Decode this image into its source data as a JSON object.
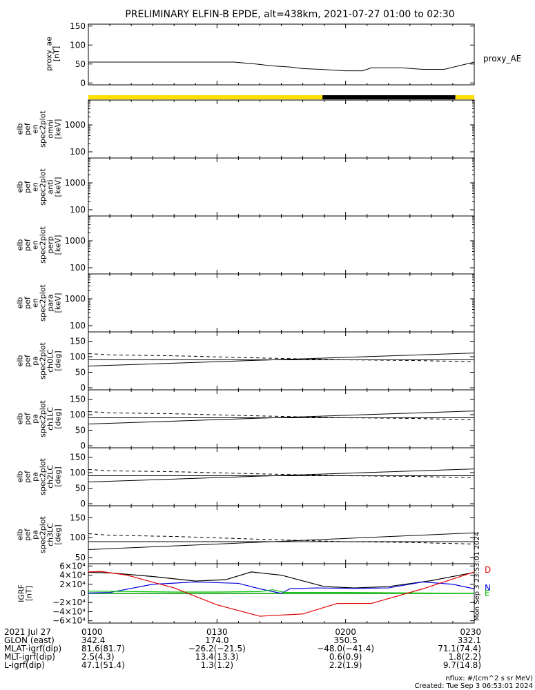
{
  "title": "PRELIMINARY ELFIN-B EPDE, alt=438km, 2021-07-27 01:00 to 02:30",
  "side_label_ae": "proxy_AE",
  "bfield_component_labels": [
    "D",
    "N",
    "E"
  ],
  "panels": [
    {
      "id": "ae",
      "ylabel_lines": [
        "proxy_ae",
        "[nT]"
      ],
      "ticks": [
        "150",
        "100",
        "50",
        "0"
      ]
    },
    {
      "id": "omni",
      "ylabel_lines": [
        "elb",
        "pef",
        "en",
        "spec2plot",
        "omni",
        "[keV]"
      ],
      "ticks": [
        "1000",
        "100"
      ]
    },
    {
      "id": "anti",
      "ylabel_lines": [
        "elb",
        "pef",
        "en",
        "spec2plot",
        "anti",
        "[keV]"
      ],
      "ticks": [
        "1000",
        "100"
      ]
    },
    {
      "id": "perp",
      "ylabel_lines": [
        "elb",
        "pef",
        "en",
        "spec2plot",
        "perp",
        "[keV]"
      ],
      "ticks": [
        "1000",
        "100"
      ]
    },
    {
      "id": "para",
      "ylabel_lines": [
        "elb",
        "pef",
        "en",
        "spec2plot",
        "para",
        "[keV]"
      ],
      "ticks": [
        "1000",
        "100"
      ]
    },
    {
      "id": "ch0",
      "ylabel_lines": [
        "elb",
        "pef",
        "pa",
        "spec2plot",
        "ch0LC",
        "[deg]"
      ],
      "ticks": [
        "150",
        "100",
        "50",
        "0"
      ]
    },
    {
      "id": "ch1",
      "ylabel_lines": [
        "elb",
        "pef",
        "pa",
        "spec2plot",
        "ch1LC",
        "[deg]"
      ],
      "ticks": [
        "150",
        "100",
        "50",
        "0"
      ]
    },
    {
      "id": "ch2",
      "ylabel_lines": [
        "elb",
        "pef",
        "pa",
        "spec2plot",
        "ch2LC",
        "[deg]"
      ],
      "ticks": [
        "150",
        "100",
        "50",
        "0"
      ]
    },
    {
      "id": "ch3",
      "ylabel_lines": [
        "elb",
        "pef",
        "pa",
        "spec2plot",
        "ch3LC",
        "[deg]"
      ],
      "ticks": [
        "150",
        "100",
        "50"
      ]
    },
    {
      "id": "igrf",
      "ylabel_lines": [
        "IGRF",
        "[nT]"
      ],
      "ticks": [
        "6×10⁴",
        "4×10⁴",
        "2×10⁴",
        "0",
        "−2×10⁴",
        "−4×10⁴",
        "−6×10⁴"
      ]
    }
  ],
  "footer": {
    "rows": [
      {
        "label": "2021 Jul 27",
        "values": [
          "0100",
          "0130",
          "0200",
          "0230"
        ]
      },
      {
        "label": "GLON (east)",
        "values": [
          "342.4",
          "174.0",
          "350.5",
          "332.1"
        ]
      },
      {
        "label": "MLAT-igrf(dip)",
        "values": [
          "81.6(81.7)",
          "−26.2(−21.5)",
          "−48.0(−41.4)",
          "71.1(74.4)"
        ]
      },
      {
        "label": "MLT-igrf(dip)",
        "values": [
          "2.5(4.3)",
          "13.4(13.3)",
          "0.6(0.9)",
          "1.8(2.2)"
        ]
      },
      {
        "label": "L-igrf(dip)",
        "values": [
          "47.1(51.4)",
          "1.3(1.2)",
          "2.2(1.9)",
          "9.7(14.8)"
        ]
      }
    ],
    "nflux_label": "nflux: #/(cm^2 s sr MeV)",
    "created_label": "Created: Tue Sep  3 06:53:01 2024",
    "vertical_stamp": "Mon Sep  3 23:53:01 2024"
  },
  "chart_data": {
    "type": "line",
    "x_ticks": [
      "0100",
      "0130",
      "0200",
      "0230"
    ],
    "xlim_minutes": [
      0,
      90
    ],
    "proxy_ae": {
      "ylim": [
        0,
        150
      ],
      "x_min": [
        0,
        18,
        25,
        29,
        34,
        39,
        43,
        47,
        50,
        54,
        60,
        64,
        66,
        73,
        78,
        83,
        90
      ],
      "y": [
        55,
        55,
        55,
        55,
        55,
        50,
        45,
        42,
        38,
        36,
        32,
        32,
        40,
        40,
        36,
        36,
        55
      ]
    },
    "day_night_bar": [
      {
        "from": 0,
        "to": 54.6,
        "color": "#ffe000"
      },
      {
        "from": 54.6,
        "to": 85.6,
        "color": "#000000"
      },
      {
        "from": 85.6,
        "to": 90,
        "color": "#ffe000"
      }
    ],
    "loss_cone": {
      "ylim": [
        0,
        180
      ],
      "solid_x": [
        0,
        90
      ],
      "solid_y": [
        70,
        112
      ],
      "dashed_x": [
        0,
        5,
        20,
        40,
        60,
        75,
        90
      ],
      "dashed_y": [
        110,
        106,
        103,
        96,
        90,
        88,
        84
      ],
      "horizontal_ref": 90
    },
    "igrf": {
      "ylim": [
        -65000,
        65000
      ],
      "D": {
        "x": [
          0,
          3,
          9,
          20,
          30,
          40,
          50,
          58,
          66,
          78,
          90
        ],
        "y": [
          47000,
          48000,
          40000,
          12000,
          -25000,
          -50000,
          -45000,
          -22000,
          -22000,
          10000,
          47000
        ]
      },
      "black": {
        "x": [
          0,
          5,
          15,
          25,
          32,
          38,
          45,
          55,
          62,
          70,
          80,
          90
        ],
        "y": [
          46000,
          45000,
          37000,
          27000,
          30000,
          47000,
          40000,
          15000,
          12000,
          15000,
          28000,
          46000
        ]
      },
      "N": {
        "x": [
          0,
          5,
          15,
          25,
          35,
          40,
          45,
          47,
          53,
          62,
          70,
          78,
          85,
          90
        ],
        "y": [
          1000,
          2000,
          20000,
          25000,
          22000,
          10000,
          0,
          10000,
          12000,
          11000,
          12000,
          25000,
          20000,
          10000
        ]
      },
      "E": {
        "x": [
          0,
          20,
          30,
          40,
          43,
          46,
          50,
          60,
          90
        ],
        "y": [
          5000,
          3000,
          3000,
          4000,
          8000,
          2000,
          2000,
          2000,
          0
        ]
      },
      "green_baseline": 0
    }
  }
}
